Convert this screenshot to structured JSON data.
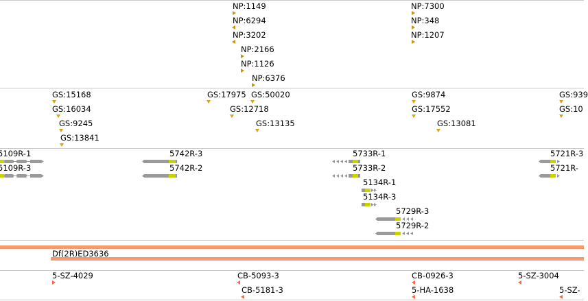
{
  "np_track": {
    "features": [
      {
        "label": "NP:1149",
        "dir": "right"
      },
      {
        "label": "NP:6294",
        "dir": "left"
      },
      {
        "label": "NP:3202",
        "dir": "left"
      },
      {
        "label": "NP:2166",
        "dir": "right"
      },
      {
        "label": "NP:1126",
        "dir": "right"
      },
      {
        "label": "NP:6376",
        "dir": "right"
      },
      {
        "label": "NP:7300",
        "dir": "right"
      },
      {
        "label": "NP:348",
        "dir": "right"
      },
      {
        "label": "NP:1207",
        "dir": "right"
      }
    ]
  },
  "gs_track": {
    "features": [
      {
        "label": "GS:15168"
      },
      {
        "label": "GS:16034"
      },
      {
        "label": "GS:9245"
      },
      {
        "label": "GS:13841"
      },
      {
        "label": "GS:17975"
      },
      {
        "label": "GS:50020"
      },
      {
        "label": "GS:12718"
      },
      {
        "label": "GS:13135"
      },
      {
        "label": "GS:9874"
      },
      {
        "label": "GS:17552"
      },
      {
        "label": "GS:13081"
      },
      {
        "label": "GS:939"
      },
      {
        "label": "GS:10"
      }
    ]
  },
  "transcripts_track": {
    "features": [
      {
        "label": "5109R-1"
      },
      {
        "label": "5109R-3"
      },
      {
        "label": "5742R-3"
      },
      {
        "label": "5742R-2"
      },
      {
        "label": "5733R-1"
      },
      {
        "label": "5733R-2"
      },
      {
        "label": "5134R-1"
      },
      {
        "label": "5134R-3"
      },
      {
        "label": "5729R-3"
      },
      {
        "label": "5729R-2"
      },
      {
        "label": "5721R-3"
      },
      {
        "label": "5721R-"
      }
    ]
  },
  "deficiency_track": {
    "features": [
      {
        "label": "Df(2R)ED3636"
      }
    ],
    "color": "#f59a6e"
  },
  "cb_track": {
    "features": [
      {
        "label": "5-SZ-4029"
      },
      {
        "label": "CB-5093-3"
      },
      {
        "label": "CB-5181-3"
      },
      {
        "label": "CB-0926-3"
      },
      {
        "label": "5-HA-1638"
      },
      {
        "label": "5-SZ-3004"
      },
      {
        "label": "5-SZ-"
      }
    ]
  },
  "colors": {
    "np_marker": "#c8950f",
    "gs_marker": "#e0a012",
    "transcript_body": "#9a9a9a",
    "cds": "#c7d400",
    "stock_marker": "#ff6a3a"
  }
}
